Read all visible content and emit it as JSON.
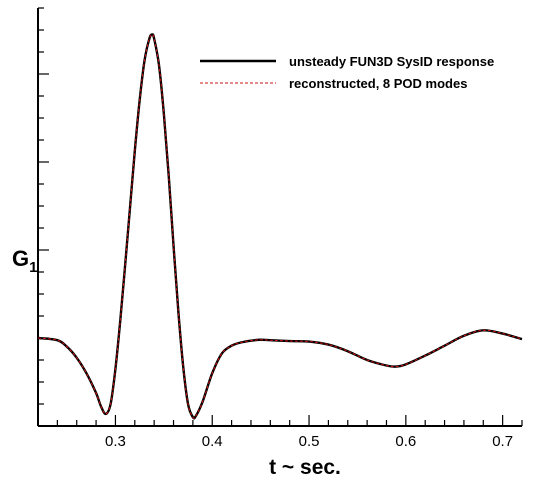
{
  "chart_data": {
    "type": "line",
    "xlabel": "t ~ sec.",
    "ylabel": "G",
    "ylabel_subscript": "1",
    "xlim": [
      0.22,
      0.72
    ],
    "x_ticks": [
      "0.3",
      "0.4",
      "0.5",
      "0.6",
      "0.7"
    ],
    "y_tick_labels_shown": false,
    "grid": false,
    "legend_position": "top-right",
    "series": [
      {
        "name": "unsteady FUN3D SysID response",
        "color": "#000000",
        "style": "solid",
        "x": [
          0.22,
          0.24,
          0.25,
          0.26,
          0.27,
          0.28,
          0.285,
          0.29,
          0.295,
          0.3,
          0.305,
          0.31,
          0.315,
          0.32,
          0.325,
          0.33,
          0.335,
          0.338,
          0.34,
          0.345,
          0.35,
          0.355,
          0.36,
          0.365,
          0.37,
          0.375,
          0.38,
          0.383,
          0.39,
          0.4,
          0.41,
          0.42,
          0.43,
          0.44,
          0.45,
          0.46,
          0.48,
          0.5,
          0.52,
          0.54,
          0.56,
          0.58,
          0.59,
          0.6,
          0.62,
          0.64,
          0.66,
          0.68,
          0.7,
          0.72
        ],
        "y": [
          0.0,
          -0.1,
          -0.4,
          -0.9,
          -1.6,
          -2.5,
          -3.1,
          -3.45,
          -3.0,
          -1.4,
          0.8,
          3.3,
          5.9,
          8.5,
          10.8,
          12.6,
          13.6,
          13.8,
          13.6,
          12.4,
          10.2,
          7.4,
          4.2,
          1.2,
          -1.3,
          -3.0,
          -3.6,
          -3.55,
          -2.9,
          -1.6,
          -0.7,
          -0.35,
          -0.2,
          -0.12,
          -0.08,
          -0.1,
          -0.14,
          -0.16,
          -0.3,
          -0.6,
          -1.0,
          -1.25,
          -1.3,
          -1.2,
          -0.8,
          -0.35,
          0.1,
          0.35,
          0.2,
          -0.05
        ]
      },
      {
        "name": "reconstructed, 8 POD modes",
        "color": "#cc1111",
        "style": "dashed",
        "x": [
          0.22,
          0.24,
          0.25,
          0.26,
          0.27,
          0.28,
          0.285,
          0.29,
          0.295,
          0.3,
          0.305,
          0.31,
          0.315,
          0.32,
          0.325,
          0.33,
          0.335,
          0.338,
          0.34,
          0.345,
          0.35,
          0.355,
          0.36,
          0.365,
          0.37,
          0.375,
          0.38,
          0.383,
          0.39,
          0.4,
          0.41,
          0.42,
          0.43,
          0.44,
          0.45,
          0.46,
          0.48,
          0.5,
          0.52,
          0.54,
          0.56,
          0.58,
          0.59,
          0.6,
          0.62,
          0.64,
          0.66,
          0.68,
          0.7,
          0.72
        ],
        "y": [
          0.0,
          -0.1,
          -0.4,
          -0.9,
          -1.6,
          -2.5,
          -3.1,
          -3.45,
          -3.0,
          -1.4,
          0.8,
          3.3,
          5.9,
          8.5,
          10.8,
          12.6,
          13.6,
          13.8,
          13.6,
          12.4,
          10.2,
          7.4,
          4.2,
          1.2,
          -1.3,
          -3.0,
          -3.6,
          -3.55,
          -2.9,
          -1.6,
          -0.7,
          -0.35,
          -0.2,
          -0.12,
          -0.08,
          -0.1,
          -0.14,
          -0.16,
          -0.3,
          -0.6,
          -1.0,
          -1.25,
          -1.3,
          -1.2,
          -0.8,
          -0.35,
          0.1,
          0.35,
          0.2,
          -0.05
        ]
      }
    ]
  }
}
